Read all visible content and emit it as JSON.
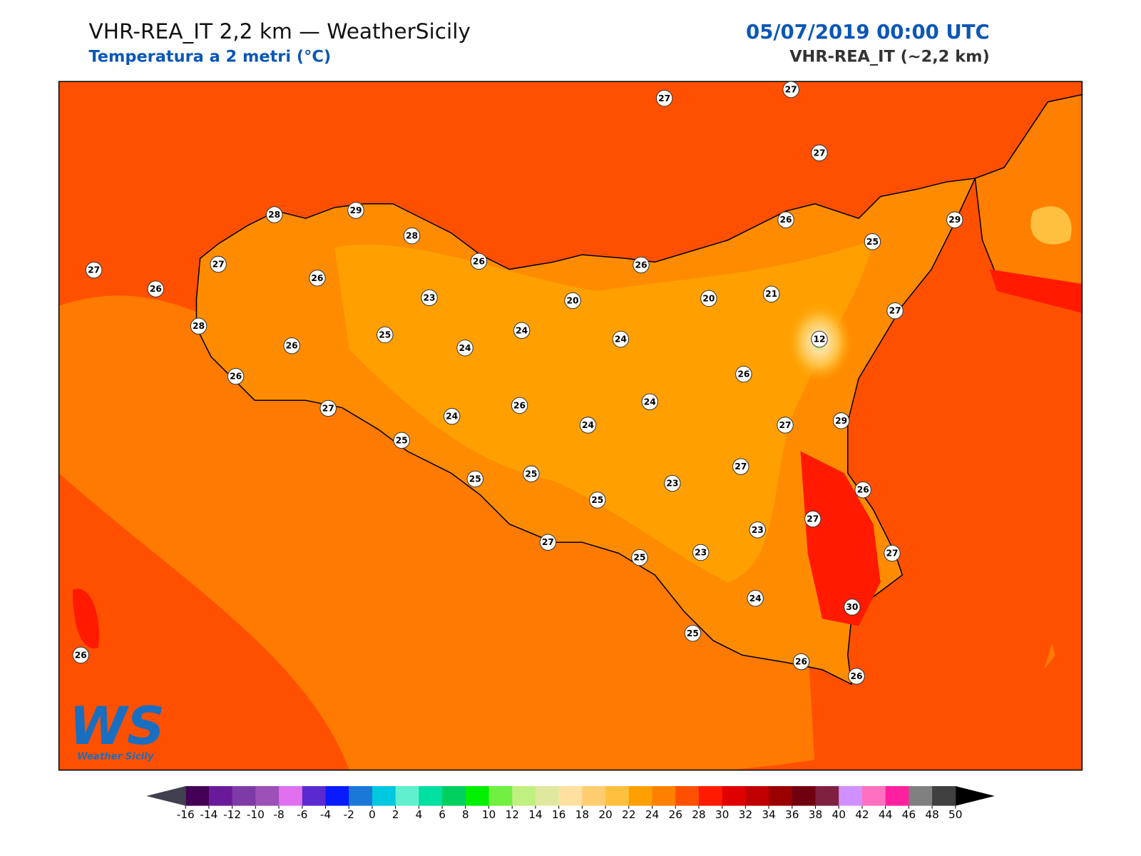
{
  "header": {
    "title": "VHR-REA_IT 2,2 km — WeatherSicily",
    "subtitle": "Temperatura a 2 metri (°C)",
    "datetime": "05/07/2019 00:00 UTC",
    "model": "VHR-REA_IT (~2,2 km)"
  },
  "stations": [
    27,
    27,
    27,
    28,
    29,
    28,
    26,
    29,
    25,
    27,
    27,
    26,
    26,
    26,
    26,
    23,
    20,
    20,
    21,
    27,
    28,
    25,
    24,
    24,
    24,
    12,
    26,
    26,
    26,
    26,
    24,
    27,
    24,
    24,
    27,
    29,
    25,
    27,
    25,
    25,
    23,
    26,
    25,
    27,
    23,
    27,
    25,
    23,
    27,
    24,
    30,
    25,
    26,
    26,
    26
  ],
  "logo": {
    "mark": "WS",
    "text": "Weather Sicily"
  },
  "colorbar": {
    "ticks": [
      -16,
      -14,
      -12,
      -10,
      -8,
      -6,
      -4,
      -2,
      0,
      2,
      4,
      6,
      8,
      10,
      12,
      14,
      16,
      18,
      20,
      22,
      24,
      26,
      28,
      30,
      32,
      34,
      36,
      38,
      40,
      42,
      44,
      46,
      48,
      50
    ],
    "colors": [
      "#440055",
      "#6a1a99",
      "#7e3aa6",
      "#9c50b8",
      "#e070f0",
      "#5a2ad0",
      "#0a1aff",
      "#1a78d8",
      "#00c8e0",
      "#60f0d0",
      "#00e0a0",
      "#00d060",
      "#00f000",
      "#70f040",
      "#c0f080",
      "#e0e8a0",
      "#ffe0a0",
      "#ffcc70",
      "#ffc040",
      "#ffa000",
      "#ff8000",
      "#ff5000",
      "#ff1a00",
      "#e00000",
      "#c00000",
      "#9a0000",
      "#700010",
      "#802040",
      "#d090ff",
      "#ff70c0",
      "#ff20a0",
      "#808080",
      "#404040"
    ],
    "under_color": "#404050",
    "over_color": "#000000"
  }
}
